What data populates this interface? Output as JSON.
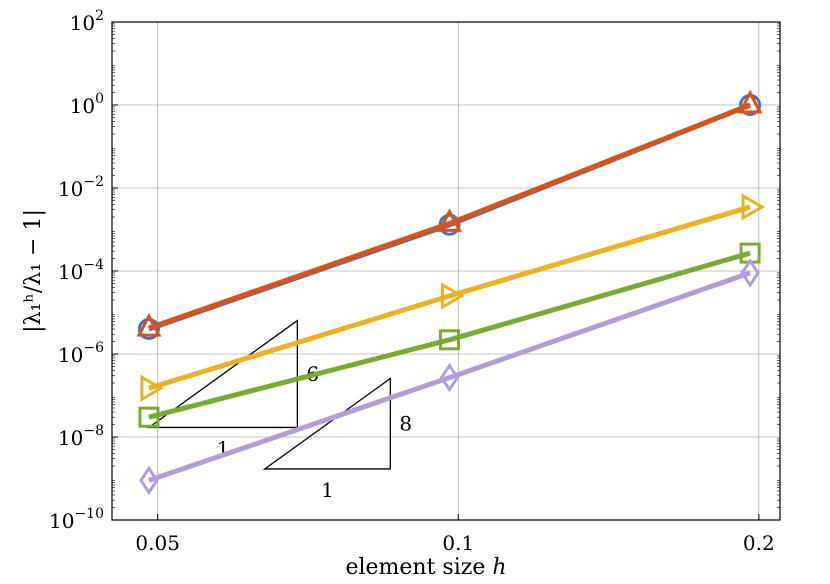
{
  "chart_data": {
    "type": "line",
    "title": "",
    "xlabel": "element size",
    "xlabel_var": "h",
    "ylabel": "|λ₁ʰ/λ₁ − 1|",
    "xscale": "log",
    "yscale": "log",
    "xlim": [
      0.045,
      0.21
    ],
    "ylim": [
      1e-10,
      100
    ],
    "x": [
      0.049,
      0.098,
      0.196
    ],
    "x_ticks": [
      {
        "value": 0.05,
        "label": "0.05"
      },
      {
        "value": 0.1,
        "label": "0.1"
      },
      {
        "value": 0.2,
        "label": "0.2"
      }
    ],
    "y_ticks": [
      {
        "value": 1e-10,
        "base": "10",
        "exp": "−10"
      },
      {
        "value": 1e-08,
        "base": "10",
        "exp": "−8"
      },
      {
        "value": 1e-06,
        "base": "10",
        "exp": "−6"
      },
      {
        "value": 0.0001,
        "base": "10",
        "exp": "−4"
      },
      {
        "value": 0.01,
        "base": "10",
        "exp": "−2"
      },
      {
        "value": 1,
        "base": "10",
        "exp": "0"
      },
      {
        "value": 100,
        "base": "10",
        "exp": "2"
      }
    ],
    "grid": true,
    "series": [
      {
        "values": [
          4e-06,
          0.0013,
          1.0
        ],
        "color": "#4472c4",
        "marker": "circle"
      },
      {
        "values": [
          4.2e-06,
          0.0014,
          1.0
        ],
        "color": "#d95319",
        "marker": "triangle-up"
      },
      {
        "values": [
          1.5e-07,
          2.5e-05,
          0.0035
        ],
        "color": "#edb120",
        "marker": "triangle-right"
      },
      {
        "values": [
          3e-08,
          2.2e-06,
          0.00027
        ],
        "color": "#77ac30",
        "marker": "square"
      },
      {
        "values": [
          9e-10,
          2.7e-07,
          9e-05
        ],
        "color": "#b09ddb",
        "marker": "diamond"
      }
    ],
    "slope_triangles": [
      {
        "x0": 0.049,
        "x1": 0.069,
        "y0": 1.7e-08,
        "rise_label": "6",
        "run_label": "1"
      },
      {
        "x0": 0.064,
        "x1": 0.0855,
        "y0": 1.7e-09,
        "rise_label": "8",
        "run_label": "1"
      }
    ]
  }
}
